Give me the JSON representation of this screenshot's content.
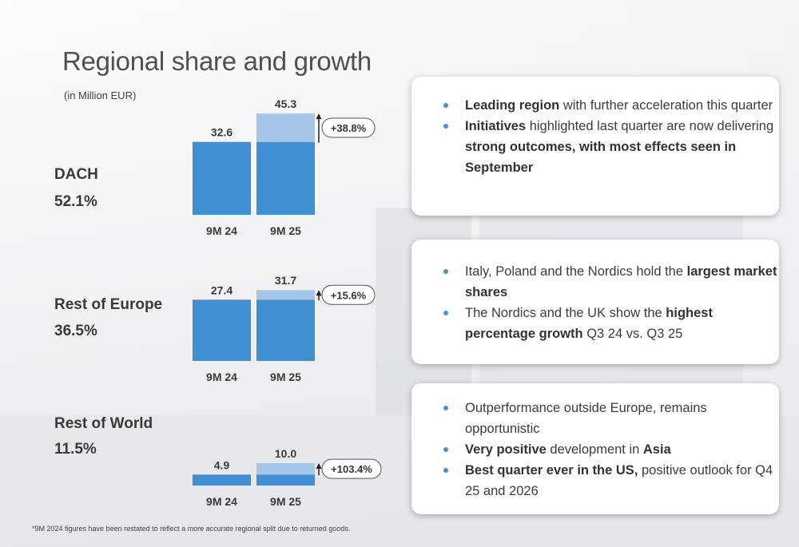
{
  "page": {
    "title": "Regional share and growth",
    "subtitle": "(in Million EUR)",
    "footnote": "*9M 2024 figures have been restated to reflect a more accurate regional split due to returned goods.",
    "colors": {
      "bar_base": "#3f8fd2",
      "bar_increment": "#a6c6e8",
      "bullet": "#4a8fd0"
    }
  },
  "regions": [
    {
      "name": "DACH",
      "share": "52.1%",
      "card": [
        [
          {
            "t": "Leading region",
            "b": true
          },
          {
            "t": " with further acceleration this quarter",
            "b": false
          }
        ],
        [
          {
            "t": "Initiatives",
            "b": true
          },
          {
            "t": " highlighted last quarter are now delivering ",
            "b": false
          },
          {
            "t": "strong outcomes, with most effects seen in September",
            "b": true
          }
        ]
      ]
    },
    {
      "name": "Rest of Europe",
      "share": "36.5%",
      "card": [
        [
          {
            "t": "Italy, Poland and the Nordics hold the ",
            "b": false
          },
          {
            "t": "largest market shares",
            "b": true
          }
        ],
        [
          {
            "t": "The Nordics and the UK show the ",
            "b": false
          },
          {
            "t": "highest percentage growth",
            "b": true
          },
          {
            "t": " Q3 24 vs. Q3 25",
            "b": false
          }
        ]
      ]
    },
    {
      "name": "Rest of World",
      "share": "11.5%",
      "card": [
        [
          {
            "t": "Outperformance outside Europe, remains opportunistic",
            "b": false
          }
        ],
        [
          {
            "t": "Very positive",
            "b": true
          },
          {
            "t": " development in ",
            "b": false
          },
          {
            "t": "Asia",
            "b": true
          }
        ],
        [
          {
            "t": "Best quarter ever in the US,",
            "b": true
          },
          {
            "t": " positive outlook for Q4 25 and 2026",
            "b": false
          }
        ]
      ]
    }
  ],
  "chart_data": [
    {
      "type": "bar",
      "categories": [
        "9M 24",
        "9M 25"
      ],
      "values": [
        32.6,
        45.3
      ],
      "value_labels": [
        "32.6",
        "45.3"
      ],
      "growth_label": "+38.8%"
    },
    {
      "type": "bar",
      "categories": [
        "9M 24",
        "9M 25"
      ],
      "values": [
        27.4,
        31.7
      ],
      "value_labels": [
        "27.4",
        "31.7"
      ],
      "growth_label": "+15.6%"
    },
    {
      "type": "bar",
      "categories": [
        "9M 24",
        "9M 25"
      ],
      "values": [
        4.9,
        10.0
      ],
      "value_labels": [
        "4.9",
        "10.0"
      ],
      "growth_label": "+103.4%"
    }
  ]
}
